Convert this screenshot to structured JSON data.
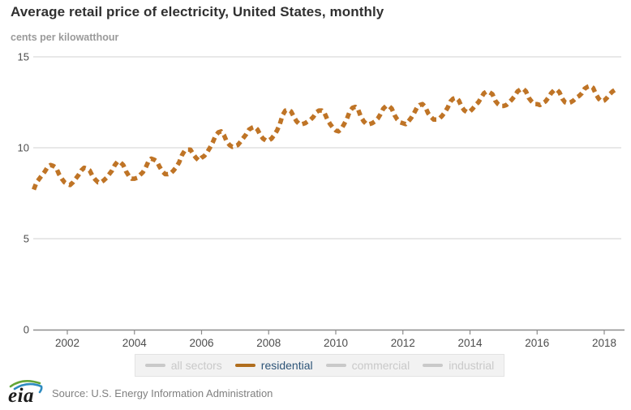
{
  "header": {
    "title": "Average retail price of electricity, United States, monthly",
    "units_label": "cents per kilowatthour"
  },
  "legend": {
    "items": [
      {
        "label": "all sectors",
        "line_color": "#c9c9c9",
        "text_color": "#c9c9c9",
        "active": false
      },
      {
        "label": "residential",
        "line_color": "#b06e1e",
        "text_color": "#2e5578",
        "active": true
      },
      {
        "label": "commercial",
        "line_color": "#c9c9c9",
        "text_color": "#c9c9c9",
        "active": false
      },
      {
        "label": "industrial",
        "line_color": "#c9c9c9",
        "text_color": "#c9c9c9",
        "active": false
      }
    ]
  },
  "footer": {
    "logo_text": "eia",
    "source": "Source: U.S. Energy Information Administration"
  },
  "colors": {
    "line": "#bf7426",
    "grid": "#d2d2d2",
    "axis": "#8c8c8c",
    "tick_text": "#4d4d4d",
    "title_text": "#303030",
    "subtitle_text": "#9a9a9a",
    "legend_bg": "#f2f2f2",
    "legend_border": "#e3e3e3",
    "active_legend_text": "#2e5578",
    "source_text": "#808080"
  },
  "chart_data": {
    "type": "line",
    "title": "Average retail price of electricity, United States, monthly",
    "xlabel": "",
    "ylabel": "cents per kilowatthour",
    "ylim": [
      0,
      15
    ],
    "xlim": [
      2001.0,
      2018.6
    ],
    "y_ticks": [
      0,
      5,
      10,
      15
    ],
    "x_ticks": [
      2002,
      2004,
      2006,
      2008,
      2010,
      2012,
      2014,
      2016,
      2018
    ],
    "grid": "horizontal",
    "legend_position": "bottom",
    "inactive_series_labels": [
      "all sectors",
      "commercial",
      "industrial"
    ],
    "series": [
      {
        "name": "residential",
        "color": "#bf7426",
        "style": "dashed",
        "frequency": "monthly",
        "start_year": 2001,
        "start_month": 1,
        "units": "cents per kilowatthour",
        "values": [
          7.7,
          8.1,
          8.3,
          8.5,
          8.7,
          8.95,
          9.05,
          9.0,
          8.9,
          8.55,
          8.3,
          8.1,
          8.0,
          7.95,
          8.1,
          8.3,
          8.5,
          8.75,
          8.9,
          8.85,
          8.75,
          8.45,
          8.25,
          8.1,
          8.1,
          8.2,
          8.35,
          8.55,
          8.75,
          9.05,
          9.25,
          9.2,
          9.05,
          8.7,
          8.45,
          8.3,
          8.3,
          8.35,
          8.5,
          8.65,
          8.9,
          9.25,
          9.4,
          9.35,
          9.25,
          8.95,
          8.7,
          8.55,
          8.55,
          8.6,
          8.75,
          8.95,
          9.2,
          9.6,
          9.85,
          9.9,
          9.9,
          9.65,
          9.45,
          9.3,
          9.45,
          9.55,
          9.75,
          10.0,
          10.3,
          10.65,
          10.85,
          10.9,
          10.7,
          10.35,
          10.15,
          10.05,
          10.1,
          10.15,
          10.35,
          10.55,
          10.75,
          11.0,
          11.1,
          11.15,
          11.0,
          10.7,
          10.5,
          10.4,
          10.4,
          10.5,
          10.7,
          10.95,
          11.3,
          11.8,
          12.05,
          12.1,
          12.0,
          11.7,
          11.45,
          11.3,
          11.3,
          11.35,
          11.45,
          11.55,
          11.7,
          11.95,
          12.05,
          12.05,
          11.9,
          11.55,
          11.3,
          11.1,
          10.95,
          10.9,
          11.05,
          11.3,
          11.6,
          12.0,
          12.2,
          12.25,
          12.1,
          11.7,
          11.45,
          11.3,
          11.3,
          11.35,
          11.45,
          11.6,
          11.85,
          12.15,
          12.3,
          12.3,
          12.15,
          11.8,
          11.55,
          11.4,
          11.35,
          11.3,
          11.45,
          11.65,
          11.9,
          12.2,
          12.35,
          12.4,
          12.25,
          11.9,
          11.7,
          11.55,
          11.55,
          11.6,
          11.75,
          11.95,
          12.2,
          12.55,
          12.7,
          12.75,
          12.6,
          12.25,
          12.05,
          11.95,
          12.0,
          12.15,
          12.35,
          12.5,
          12.75,
          13.0,
          13.1,
          13.05,
          12.95,
          12.6,
          12.4,
          12.3,
          12.3,
          12.35,
          12.5,
          12.65,
          12.85,
          13.1,
          13.2,
          13.25,
          13.1,
          12.75,
          12.55,
          12.4,
          12.4,
          12.35,
          12.45,
          12.55,
          12.75,
          13.0,
          13.15,
          13.2,
          13.05,
          12.7,
          12.5,
          12.45,
          12.5,
          12.6,
          12.75,
          12.85,
          13.0,
          13.25,
          13.35,
          13.4,
          13.3,
          12.95,
          12.7,
          12.55,
          12.6,
          12.75,
          12.95,
          13.1,
          13.2
        ]
      }
    ]
  }
}
